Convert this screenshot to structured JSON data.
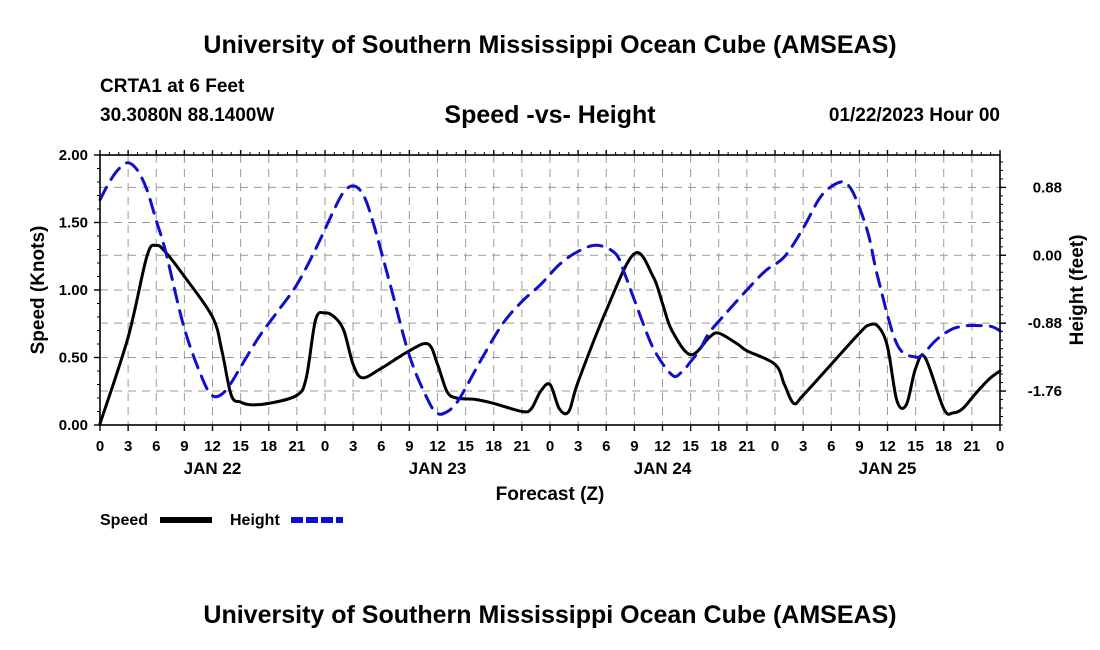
{
  "page": {
    "title": "University of Southern Mississippi Ocean Cube (AMSEAS)",
    "footer_title": "University of Southern Mississippi Ocean Cube (AMSEAS)",
    "station": "CRTA1 at 6 Feet",
    "coords": "30.3080N  88.1400W",
    "datetime": "01/22/2023 Hour 00"
  },
  "legend": {
    "speed_label": "Speed",
    "height_label": "Height"
  },
  "colors": {
    "speed": "#000000",
    "height": "#1010cc",
    "grid": "#9a9a9a"
  },
  "chart_data": {
    "type": "line",
    "title": "Speed -vs- Height",
    "xlabel": "Forecast (Z)",
    "ylabel": "Speed (Knots)",
    "y2label": "Height (feet)",
    "xlim": [
      0,
      96
    ],
    "ylim": [
      0,
      2.0
    ],
    "y2lim": [
      -2.2,
      1.3
    ],
    "x_ticks": [
      0,
      3,
      6,
      9,
      12,
      15,
      18,
      21,
      24,
      27,
      30,
      33,
      36,
      39,
      42,
      45,
      48,
      51,
      54,
      57,
      60,
      63,
      66,
      69,
      72,
      75,
      78,
      81,
      84,
      87,
      90,
      93,
      96
    ],
    "x_tick_labels": [
      "0",
      "3",
      "6",
      "9",
      "12",
      "15",
      "18",
      "21",
      "0",
      "3",
      "6",
      "9",
      "12",
      "15",
      "18",
      "21",
      "0",
      "3",
      "6",
      "9",
      "12",
      "15",
      "18",
      "21",
      "0",
      "3",
      "6",
      "9",
      "12",
      "15",
      "18",
      "21",
      "0"
    ],
    "day_labels": [
      {
        "x": 12,
        "label": "JAN 22"
      },
      {
        "x": 36,
        "label": "JAN 23"
      },
      {
        "x": 60,
        "label": "JAN 24"
      },
      {
        "x": 84,
        "label": "JAN 25"
      }
    ],
    "y_ticks": [
      0,
      0.5,
      1.0,
      1.5,
      2.0
    ],
    "y_tick_labels": [
      "0.00",
      "0.50",
      "1.00",
      "1.50",
      "2.00"
    ],
    "y2_ticks": [
      0.88,
      0.0,
      -0.88,
      -1.76
    ],
    "y2_tick_labels": [
      "0.88",
      "0.00",
      "-0.88",
      "-1.76"
    ],
    "series": [
      {
        "name": "Speed",
        "axis": "left",
        "x": [
          0,
          3,
          5,
          6,
          7,
          9,
          12,
          13,
          14,
          15,
          16,
          18,
          21,
          22,
          23,
          24,
          25,
          26,
          27,
          28,
          30,
          33,
          35,
          36,
          37,
          38,
          40,
          42,
          45,
          46,
          47,
          48,
          49,
          50,
          51,
          54,
          57,
          59,
          60,
          61,
          63,
          65,
          66,
          68,
          69,
          72,
          73,
          74,
          75,
          78,
          81,
          82,
          83,
          84,
          85,
          86,
          87,
          88,
          90,
          91,
          92,
          93,
          94,
          95,
          96
        ],
        "values": [
          0.01,
          0.65,
          1.25,
          1.33,
          1.28,
          1.1,
          0.8,
          0.55,
          0.22,
          0.17,
          0.15,
          0.16,
          0.22,
          0.35,
          0.78,
          0.83,
          0.8,
          0.7,
          0.45,
          0.35,
          0.42,
          0.55,
          0.6,
          0.45,
          0.25,
          0.2,
          0.19,
          0.16,
          0.1,
          0.12,
          0.25,
          0.3,
          0.12,
          0.1,
          0.32,
          0.85,
          1.27,
          1.1,
          0.9,
          0.7,
          0.52,
          0.65,
          0.68,
          0.6,
          0.55,
          0.45,
          0.3,
          0.16,
          0.22,
          0.45,
          0.68,
          0.74,
          0.73,
          0.58,
          0.18,
          0.15,
          0.42,
          0.5,
          0.12,
          0.09,
          0.12,
          0.2,
          0.28,
          0.35,
          0.4
        ]
      },
      {
        "name": "Height",
        "axis": "right",
        "x": [
          0,
          1,
          2,
          3,
          4,
          5,
          6,
          7,
          9,
          11,
          12,
          13,
          14,
          15,
          17,
          19,
          21,
          23,
          25,
          26,
          27,
          28,
          29,
          31,
          33,
          35,
          36,
          37,
          38,
          39,
          41,
          43,
          45,
          47,
          49,
          51,
          53,
          55,
          56,
          57,
          59,
          61,
          62,
          63,
          64,
          65,
          67,
          69,
          71,
          73,
          75,
          77,
          79,
          80,
          81,
          82,
          83,
          85,
          87,
          88,
          89,
          90,
          91,
          92,
          93,
          95,
          96
        ],
        "values": [
          0.72,
          0.95,
          1.12,
          1.2,
          1.1,
          0.85,
          0.45,
          0.05,
          -0.95,
          -1.62,
          -1.82,
          -1.8,
          -1.65,
          -1.45,
          -1.05,
          -0.72,
          -0.38,
          0.08,
          0.6,
          0.82,
          0.9,
          0.8,
          0.48,
          -0.4,
          -1.3,
          -1.88,
          -2.05,
          -2.03,
          -1.92,
          -1.72,
          -1.28,
          -0.88,
          -0.6,
          -0.38,
          -0.12,
          0.05,
          0.13,
          0.02,
          -0.25,
          -0.58,
          -1.2,
          -1.55,
          -1.52,
          -1.38,
          -1.22,
          -1.0,
          -0.72,
          -0.45,
          -0.2,
          -0.02,
          0.35,
          0.78,
          0.95,
          0.88,
          0.62,
          0.25,
          -0.3,
          -1.15,
          -1.32,
          -1.25,
          -1.12,
          -1.02,
          -0.95,
          -0.92,
          -0.91,
          -0.92,
          -0.98
        ]
      }
    ]
  }
}
